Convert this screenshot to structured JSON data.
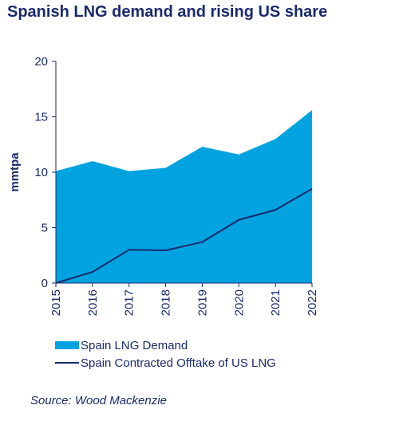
{
  "chart_data": {
    "type": "area",
    "title": "Spanish LNG demand and rising US share",
    "ylabel": "mmtpa",
    "xlabel": "",
    "categories": [
      "2015",
      "2016",
      "2017",
      "2018",
      "2019",
      "2020",
      "2021",
      "2022"
    ],
    "ylim": [
      0,
      20
    ],
    "yticks": [
      0,
      5,
      10,
      15,
      20
    ],
    "grid": false,
    "legend_placement": "bottom",
    "series": [
      {
        "name": "Spain LNG Demand",
        "kind": "area",
        "color": "#00a3e0",
        "values": [
          10.1,
          11.0,
          10.1,
          10.4,
          12.3,
          11.6,
          13.0,
          15.6
        ]
      },
      {
        "name": "Spain Contracted Offtake of US LNG",
        "kind": "line",
        "color": "#1a2a6c",
        "values": [
          0.0,
          1.0,
          3.0,
          2.95,
          3.7,
          5.7,
          6.6,
          8.5
        ]
      }
    ]
  },
  "source": "Source: Wood Mackenzie"
}
